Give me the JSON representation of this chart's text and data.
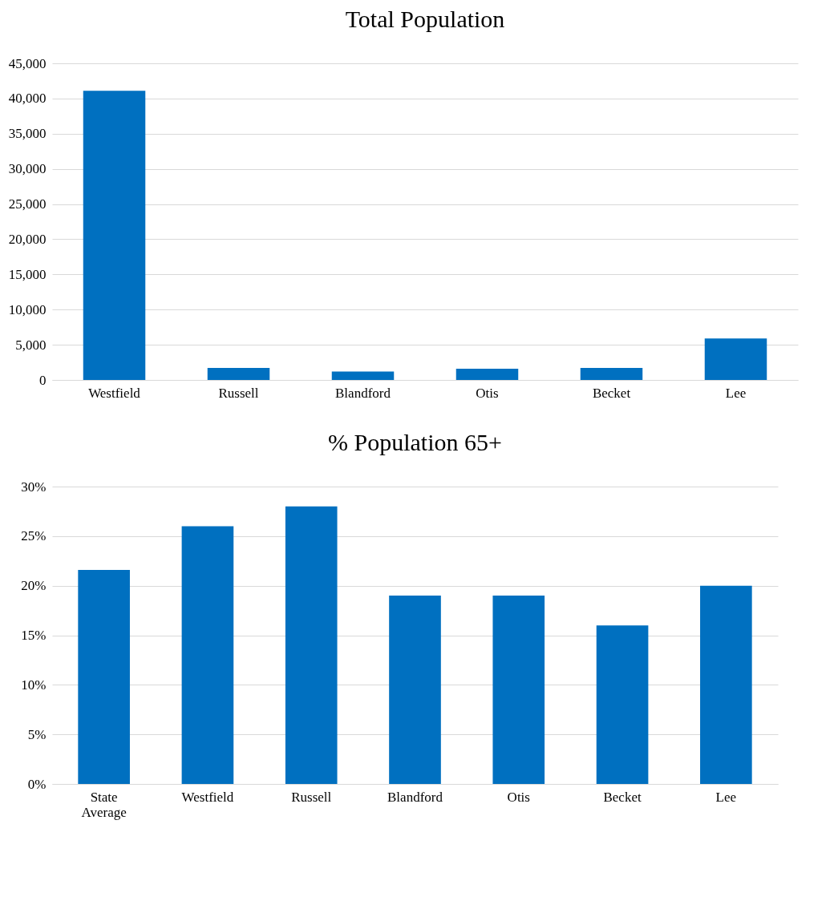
{
  "chart_data": [
    {
      "type": "bar",
      "title": "Total Population",
      "categories": [
        "Westfield",
        "Russell",
        "Blandford",
        "Otis",
        "Becket",
        "Lee"
      ],
      "values": [
        41100,
        1700,
        1200,
        1600,
        1700,
        5900
      ],
      "color": "#0070c0",
      "ylim": [
        0,
        45000
      ],
      "yticks": [
        {
          "value": 0,
          "label": "0"
        },
        {
          "value": 5000,
          "label": "5,000"
        },
        {
          "value": 10000,
          "label": "10,000"
        },
        {
          "value": 15000,
          "label": "15,000"
        },
        {
          "value": 20000,
          "label": "20,000"
        },
        {
          "value": 25000,
          "label": "25,000"
        },
        {
          "value": 30000,
          "label": "30,000"
        },
        {
          "value": 35000,
          "label": "35,000"
        },
        {
          "value": 40000,
          "label": "40,000"
        },
        {
          "value": 45000,
          "label": "45,000"
        }
      ],
      "grid": "y"
    },
    {
      "type": "bar",
      "title": "% Population 65+",
      "categories": [
        "State Average",
        "Westfield",
        "Russell",
        "Blandford",
        "Otis",
        "Becket",
        "Lee"
      ],
      "values": [
        21.6,
        26,
        28,
        19,
        19,
        16,
        20
      ],
      "color": "#0070c0",
      "ylim": [
        0,
        30
      ],
      "yticks": [
        {
          "value": 0,
          "label": "0%"
        },
        {
          "value": 5,
          "label": "5%"
        },
        {
          "value": 10,
          "label": "10%"
        },
        {
          "value": 15,
          "label": "15%"
        },
        {
          "value": 20,
          "label": "20%"
        },
        {
          "value": 25,
          "label": "25%"
        },
        {
          "value": 30,
          "label": "30%"
        }
      ],
      "grid": "y"
    }
  ]
}
